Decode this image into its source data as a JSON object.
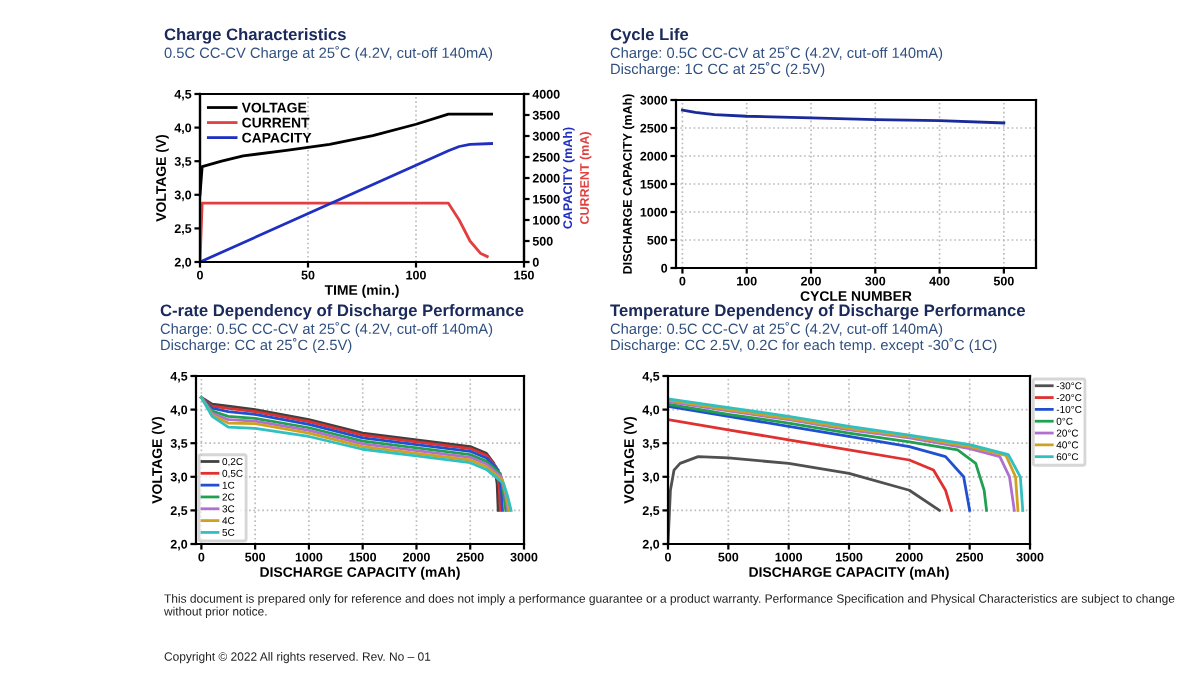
{
  "chart_data": [
    {
      "type": "line",
      "title": "Charge Characteristics",
      "subtitle": "0.5C CC-CV Charge at 25˚C (4.2V, cut-off 140mA)",
      "xlabel": "TIME (min.)",
      "ylabel": "VOLTAGE (V)",
      "y2label": "CAPACITY (mAh)",
      "annotations": [
        "CURRENT (mA)"
      ],
      "xlim": [
        0,
        150
      ],
      "xticks": [
        0,
        50,
        100,
        150
      ],
      "ylim": [
        2.0,
        4.5
      ],
      "yticks": [
        {
          "value": 2.0,
          "label": "2,0"
        },
        {
          "value": 2.5,
          "label": "2,5"
        },
        {
          "value": 3.0,
          "label": "3,0"
        },
        {
          "value": 3.5,
          "label": "3,5"
        },
        {
          "value": 4.0,
          "label": "4,0"
        },
        {
          "value": 4.5,
          "label": "4,5"
        }
      ],
      "y2lim": [
        0,
        4000
      ],
      "y2ticks": [
        0,
        500,
        1000,
        1500,
        2000,
        2500,
        3000,
        3500,
        4000
      ],
      "grid": "x",
      "legend": "top left",
      "series": [
        {
          "name": "VOLTAGE",
          "color": "#000000",
          "x": [
            0,
            1,
            10,
            20,
            40,
            60,
            80,
            100,
            115,
            135
          ],
          "values": [
            3.0,
            3.42,
            3.5,
            3.58,
            3.66,
            3.75,
            3.88,
            4.05,
            4.2,
            4.2
          ]
        },
        {
          "name": "CURRENT",
          "color": "#e04040",
          "axis": "y2",
          "x": [
            0,
            1,
            115,
            120,
            125,
            130,
            133
          ],
          "values": [
            0,
            1400,
            1400,
            1000,
            500,
            200,
            130
          ]
        },
        {
          "name": "CAPACITY",
          "color": "#1f2fc0",
          "axis": "y2",
          "x": [
            0,
            115,
            120,
            125,
            135
          ],
          "values": [
            0,
            2650,
            2750,
            2800,
            2820
          ]
        }
      ]
    },
    {
      "type": "line",
      "title": "Cycle Life",
      "subtitle": "Charge: 0.5C CC-CV at 25˚C (4.2V, cut-off 140mA)\nDischarge: 1C CC at 25˚C (2.5V)",
      "xlabel": "CYCLE NUMBER",
      "ylabel": "DISCHARGE CAPACITY (mAh)",
      "xlim": [
        -10,
        550
      ],
      "xticks": [
        0,
        100,
        200,
        300,
        400,
        500
      ],
      "ylim": [
        0,
        3000
      ],
      "yticks": [
        0,
        500,
        1000,
        1500,
        2000,
        2500,
        3000
      ],
      "grid": true,
      "series": [
        {
          "color": "#1a2a9a",
          "x": [
            0,
            20,
            50,
            100,
            200,
            300,
            400,
            500
          ],
          "values": [
            2820,
            2780,
            2740,
            2710,
            2680,
            2650,
            2630,
            2590
          ]
        }
      ]
    },
    {
      "type": "line",
      "title": "C-rate Dependency of Discharge Performance",
      "subtitle": "Charge: 0.5C CC-CV at 25˚C (4.2V, cut-off 140mA)\nDischarge: CC at 25˚C (2.5V)",
      "xlabel": "DISCHARGE CAPACITY (mAh)",
      "ylabel": "VOLTAGE (V)",
      "xlim": [
        -50,
        3000
      ],
      "xticks": [
        0,
        500,
        1000,
        1500,
        2000,
        2500,
        3000
      ],
      "ylim": [
        2.0,
        4.5
      ],
      "yticks": [
        {
          "value": 2.0,
          "label": "2,0"
        },
        {
          "value": 2.5,
          "label": "2,5"
        },
        {
          "value": 3.0,
          "label": "3,0"
        },
        {
          "value": 3.5,
          "label": "3,5"
        },
        {
          "value": 4.0,
          "label": "4,0"
        },
        {
          "value": 4.5,
          "label": "4,5"
        }
      ],
      "grid": true,
      "legend": "bottom left",
      "series": [
        {
          "name": "0,2C",
          "color": "#404040",
          "x": [
            0,
            100,
            250,
            500,
            1000,
            1500,
            2000,
            2500,
            2650,
            2720,
            2750,
            2760
          ],
          "values": [
            4.18,
            4.08,
            4.05,
            4.0,
            3.85,
            3.65,
            3.55,
            3.45,
            3.35,
            3.2,
            2.9,
            2.5
          ]
        },
        {
          "name": "0,5C",
          "color": "#e03030",
          "x": [
            0,
            100,
            250,
            500,
            1000,
            1500,
            2000,
            2500,
            2650,
            2740,
            2770,
            2780
          ],
          "values": [
            4.18,
            4.05,
            4.02,
            3.97,
            3.82,
            3.62,
            3.52,
            3.42,
            3.32,
            3.15,
            2.85,
            2.5
          ]
        },
        {
          "name": "1C",
          "color": "#2050d0",
          "x": [
            0,
            100,
            250,
            500,
            1000,
            1500,
            2000,
            2500,
            2650,
            2760,
            2790,
            2800
          ],
          "values": [
            4.18,
            4.02,
            3.97,
            3.93,
            3.78,
            3.58,
            3.48,
            3.38,
            3.28,
            3.1,
            2.8,
            2.5
          ]
        },
        {
          "name": "2C",
          "color": "#20a050",
          "x": [
            0,
            100,
            250,
            500,
            1000,
            1500,
            2000,
            2500,
            2650,
            2780,
            2810,
            2830
          ],
          "values": [
            4.18,
            3.98,
            3.9,
            3.87,
            3.73,
            3.53,
            3.43,
            3.33,
            3.23,
            3.05,
            2.75,
            2.5
          ]
        },
        {
          "name": "3C",
          "color": "#b070d0",
          "x": [
            0,
            100,
            250,
            500,
            1000,
            1500,
            2000,
            2500,
            2650,
            2790,
            2830,
            2850
          ],
          "values": [
            4.18,
            3.95,
            3.85,
            3.83,
            3.69,
            3.49,
            3.39,
            3.29,
            3.19,
            3.0,
            2.7,
            2.5
          ]
        },
        {
          "name": "4C",
          "color": "#d0a020",
          "x": [
            0,
            100,
            250,
            500,
            1000,
            1500,
            2000,
            2500,
            2650,
            2800,
            2840,
            2860
          ],
          "values": [
            4.18,
            3.92,
            3.8,
            3.79,
            3.65,
            3.45,
            3.35,
            3.25,
            3.15,
            2.95,
            2.7,
            2.5
          ]
        },
        {
          "name": "5C",
          "color": "#30c0c0",
          "x": [
            0,
            100,
            250,
            500,
            1000,
            1500,
            2000,
            2500,
            2650,
            2810,
            2850,
            2880
          ],
          "values": [
            4.18,
            3.9,
            3.74,
            3.72,
            3.6,
            3.41,
            3.31,
            3.21,
            3.11,
            2.9,
            2.7,
            2.5
          ]
        }
      ]
    },
    {
      "type": "line",
      "title": "Temperature Dependency of Discharge Performance",
      "subtitle": "Charge: 0.5C CC-CV at 25˚C (4.2V, cut-off 140mA)\nDischarge: CC 2.5V, 0.2C for each temp. except -30˚C (1C)",
      "xlabel": "DISCHARGE CAPACITY (mAh)",
      "ylabel": "VOLTAGE (V)",
      "annotations": [
        "This document is prepared only for reference and does not imply a performance guarantee or a product warranty. Performance Specification and Physical Characteristics are subject to change without prior notice.",
        "Copyright © 2022 All rights reserved. Rev. No – 01"
      ],
      "xlim": [
        0,
        3000
      ],
      "xticks": [
        0,
        500,
        1000,
        1500,
        2000,
        2500,
        3000
      ],
      "ylim": [
        2.0,
        4.5
      ],
      "yticks": [
        {
          "value": 2.0,
          "label": "2,0"
        },
        {
          "value": 2.5,
          "label": "2,5"
        },
        {
          "value": 3.0,
          "label": "3,0"
        },
        {
          "value": 3.5,
          "label": "3,5"
        },
        {
          "value": 4.0,
          "label": "4,0"
        },
        {
          "value": 4.5,
          "label": "4,5"
        }
      ],
      "grid": true,
      "legend": "top right",
      "series": [
        {
          "name": "-30°C",
          "color": "#505050",
          "x": [
            0,
            20,
            50,
            100,
            250,
            500,
            1000,
            1500,
            2000,
            2250
          ],
          "values": [
            2.0,
            2.8,
            3.1,
            3.2,
            3.3,
            3.28,
            3.2,
            3.05,
            2.8,
            2.5
          ]
        },
        {
          "name": "-20°C",
          "color": "#e03030",
          "x": [
            0,
            500,
            1000,
            1500,
            2000,
            2200,
            2300,
            2350
          ],
          "values": [
            3.85,
            3.7,
            3.55,
            3.4,
            3.25,
            3.1,
            2.8,
            2.5
          ]
        },
        {
          "name": "-10°C",
          "color": "#2050d0",
          "x": [
            0,
            500,
            1000,
            1500,
            2000,
            2300,
            2450,
            2500
          ],
          "values": [
            4.05,
            3.9,
            3.75,
            3.6,
            3.45,
            3.3,
            3.0,
            2.5
          ]
        },
        {
          "name": "0°C",
          "color": "#20a050",
          "x": [
            0,
            500,
            1000,
            1500,
            2000,
            2400,
            2550,
            2620,
            2640
          ],
          "values": [
            4.08,
            3.93,
            3.8,
            3.65,
            3.52,
            3.4,
            3.2,
            2.8,
            2.5
          ]
        },
        {
          "name": "20°C",
          "color": "#b070d0",
          "x": [
            0,
            500,
            1000,
            1500,
            2000,
            2500,
            2750,
            2830,
            2870
          ],
          "values": [
            4.12,
            3.98,
            3.85,
            3.7,
            3.58,
            3.42,
            3.3,
            3.0,
            2.5
          ]
        },
        {
          "name": "40°C",
          "color": "#d0a020",
          "x": [
            0,
            500,
            1000,
            1500,
            2000,
            2500,
            2800,
            2880,
            2900
          ],
          "values": [
            4.14,
            4.0,
            3.87,
            3.72,
            3.6,
            3.45,
            3.32,
            3.0,
            2.5
          ]
        },
        {
          "name": "60°C",
          "color": "#30c0c0",
          "x": [
            0,
            500,
            1000,
            1500,
            2000,
            2500,
            2820,
            2920,
            2940
          ],
          "values": [
            4.16,
            4.03,
            3.9,
            3.75,
            3.62,
            3.48,
            3.33,
            3.0,
            2.5
          ]
        }
      ]
    }
  ]
}
